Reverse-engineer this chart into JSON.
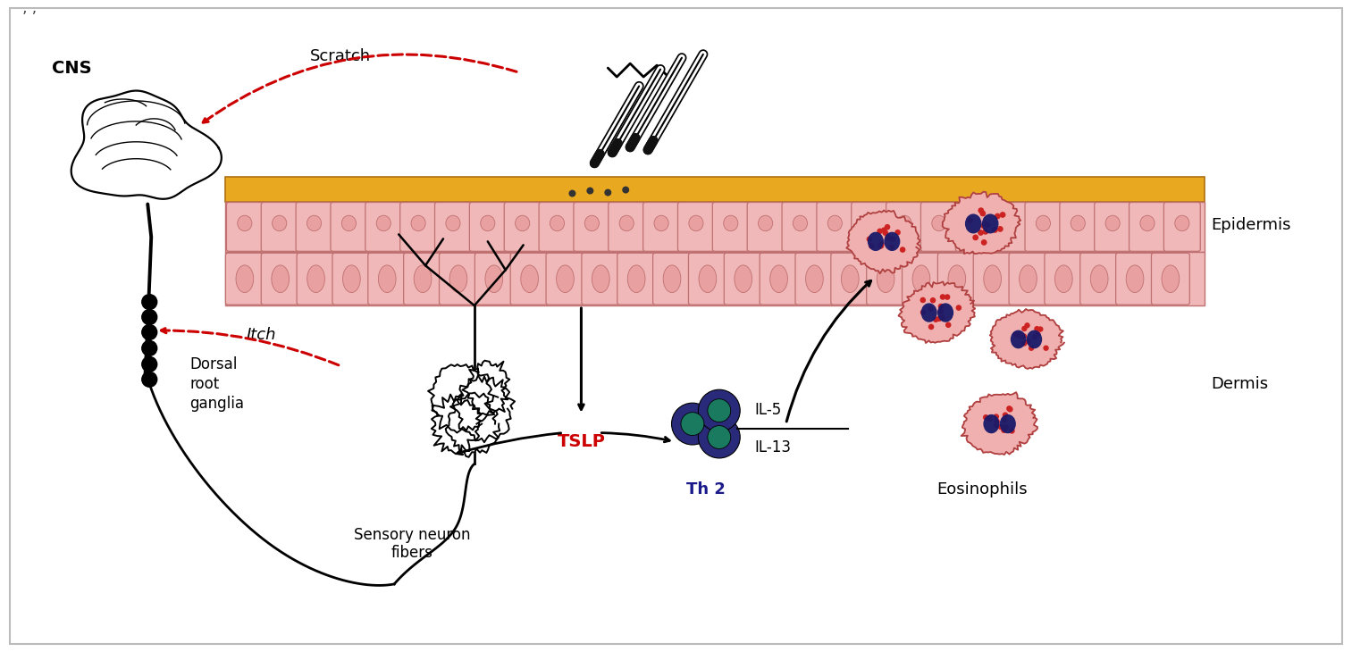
{
  "bg_color": "#ffffff",
  "border_color": "#bbbbbb",
  "skin_top_color": "#e8a820",
  "skin_layer_color": "#f0b8b8",
  "skin_cell_border": "#c07070",
  "epidermis_label": "Epidermis",
  "dermis_label": "Dermis",
  "cns_label": "CNS",
  "scratch_label": "Scratch",
  "itch_label": "Itch",
  "tslp_label": "TSLP",
  "dorsal_label": "Dorsal\nroot\nganglia",
  "sensory_label": "Sensory neuron\nfibers",
  "th2_label": "Th 2",
  "eosinophils_label": "Eosinophils",
  "il5_label": "IL-5",
  "il13_label": "IL-13",
  "black": "#000000",
  "red": "#cc0000",
  "tslp_color": "#cc0000",
  "th2_outer": "#2a2a7a",
  "th2_inner": "#1a7a60",
  "eo_fill": "#f0b0b0",
  "eo_nucleus": "#1a1a6a",
  "eo_dots": "#cc2222",
  "figwidth": 15.13,
  "figheight": 7.3
}
